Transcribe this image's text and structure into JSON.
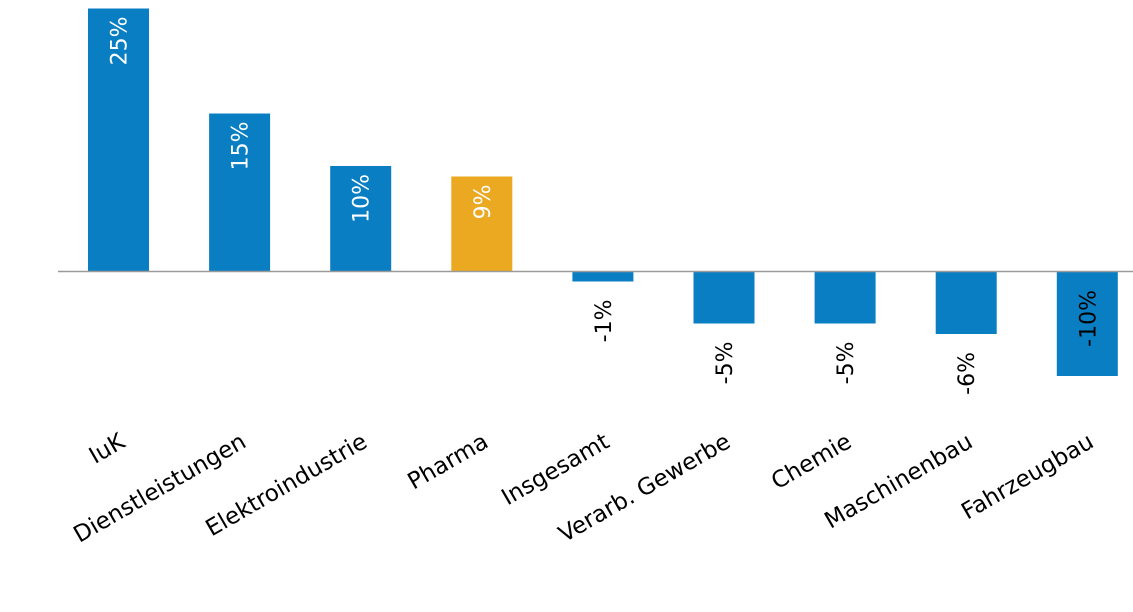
{
  "chart_data": {
    "type": "bar",
    "categories": [
      "IuK",
      "Dienstleistungen",
      "Elektroindustrie",
      "Pharma",
      "Insgesamt",
      "Verarb. Gewerbe",
      "Chemie",
      "Maschinenbau",
      "Fahrzeugbau"
    ],
    "values": [
      25,
      15,
      10,
      9,
      -1,
      -5,
      -5,
      -6,
      -10
    ],
    "value_labels": [
      "25%",
      "15%",
      "10%",
      "9%",
      "-1%",
      "-5%",
      "-5%",
      "-6%",
      "-10%"
    ],
    "highlight_category": "Pharma",
    "ylim": [
      -13,
      25
    ],
    "grid": false,
    "title": "",
    "xlabel": "",
    "ylabel": ""
  },
  "colors": {
    "bar": "#0A7EC2",
    "highlight": "#EBA821",
    "axis": "#9A9A9A",
    "label_inside": "#ffffff",
    "label_outside": "#000000"
  }
}
